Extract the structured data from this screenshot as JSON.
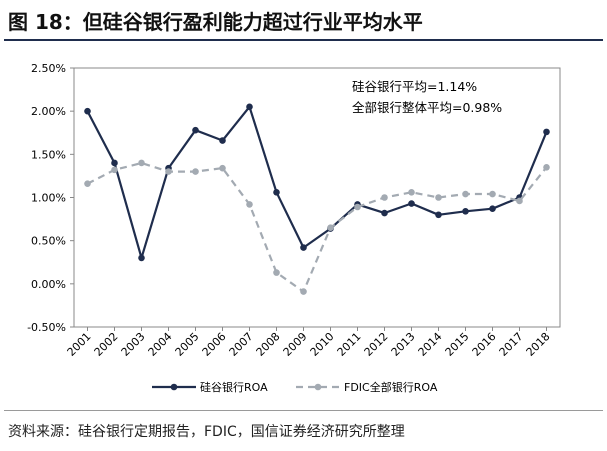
{
  "figure": {
    "title": "图 18：但硅谷银行盈利能力超过行业平均水平",
    "source": "资料来源：硅谷银行定期报告，FDIC，国信证券经济研究所整理"
  },
  "colors": {
    "svb": "#1f2d4d",
    "industry": "#a3aab2",
    "axis": "#888888",
    "text": "#000000",
    "title_rule": "#1f2d4d"
  },
  "chart_data": {
    "type": "line",
    "title": "",
    "xlabel": "",
    "ylabel": "",
    "categories": [
      "2001",
      "2002",
      "2003",
      "2004",
      "2005",
      "2006",
      "2007",
      "2008",
      "2009",
      "2010",
      "2011",
      "2012",
      "2013",
      "2014",
      "2015",
      "2016",
      "2017",
      "2018"
    ],
    "y_ticks": [
      "-0.50%",
      "0.00%",
      "0.50%",
      "1.00%",
      "1.50%",
      "2.00%",
      "2.50%"
    ],
    "ylim": [
      -0.5,
      2.5
    ],
    "grid": false,
    "legend_position": "bottom",
    "series": [
      {
        "name": "硅谷银行ROA",
        "style": "solid",
        "values": [
          2.0,
          1.4,
          0.3,
          1.34,
          1.78,
          1.66,
          2.05,
          1.06,
          0.42,
          0.64,
          0.92,
          0.82,
          0.93,
          0.8,
          0.84,
          0.87,
          1.0,
          1.76
        ]
      },
      {
        "name": "FDIC全部银行ROA",
        "style": "dashed",
        "values": [
          1.16,
          1.32,
          1.4,
          1.3,
          1.3,
          1.34,
          0.92,
          0.13,
          -0.09,
          0.65,
          0.89,
          1.0,
          1.06,
          1.0,
          1.04,
          1.04,
          0.96,
          1.35
        ]
      }
    ],
    "annotations": [
      "硅谷银行平均=1.14%",
      "全部银行整体平均=0.98%"
    ]
  }
}
